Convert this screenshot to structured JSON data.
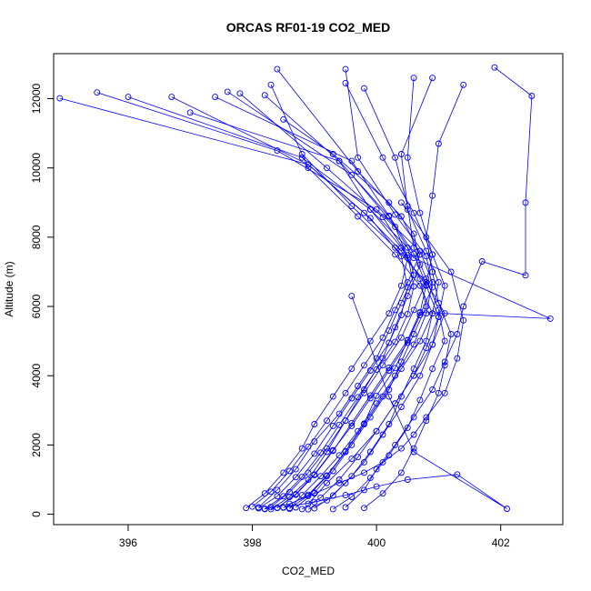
{
  "chart_data": {
    "type": "line",
    "title": "ORCAS RF01-19 CO2_MED",
    "xlabel": "CO2_MED",
    "ylabel": "Altitude (m)",
    "xlim": [
      394.8,
      403.0
    ],
    "ylim": [
      -300,
      13300
    ],
    "xticks": [
      396,
      398,
      400,
      402
    ],
    "yticks": [
      0,
      2000,
      4000,
      6000,
      8000,
      10000,
      12000
    ],
    "color": "#0000ff",
    "markers": "open-circle",
    "grid": false,
    "legend": "none",
    "series": [
      {
        "x": [
          398.3,
          398.6,
          398.9,
          399.2,
          399.5,
          399.8,
          400.1,
          400.3,
          400.5,
          400.7,
          400.6,
          400.2,
          399.3,
          398.5
        ],
        "y": [
          150,
          500,
          1000,
          1800,
          2700,
          3600,
          4500,
          5400,
          6300,
          7200,
          8100,
          9000,
          10400,
          11400
        ]
      },
      {
        "x": [
          397.9,
          398.2,
          398.5,
          398.8,
          399.0,
          399.3,
          399.6,
          399.9,
          400.2,
          400.4,
          400.5,
          400.3,
          399.6,
          397.6
        ],
        "y": [
          180,
          600,
          1200,
          1900,
          2600,
          3400,
          4200,
          5000,
          5800,
          6600,
          7400,
          8300,
          9800,
          12200
        ]
      },
      {
        "x": [
          398.1,
          398.4,
          398.7,
          399.0,
          399.4,
          399.7,
          400.0,
          400.2,
          400.4,
          400.6,
          400.5,
          399.9,
          398.8,
          396.0
        ],
        "y": [
          200,
          700,
          1300,
          2100,
          2900,
          3700,
          4500,
          5300,
          6100,
          6900,
          7700,
          8800,
          10300,
          12050
        ]
      },
      {
        "x": [
          398.6,
          398.8,
          399.1,
          399.4,
          399.7,
          400.0,
          400.3,
          400.6,
          400.8,
          400.9,
          400.7,
          400.0,
          398.4,
          395.5
        ],
        "y": [
          160,
          550,
          1100,
          1700,
          2400,
          3200,
          4000,
          4900,
          5800,
          6700,
          7600,
          8800,
          10500,
          12180
        ]
      },
      {
        "x": [
          398.9,
          399.2,
          399.5,
          399.8,
          400.1,
          400.4,
          400.7,
          400.9,
          401.0,
          400.8,
          400.4,
          399.8,
          398.9,
          394.9
        ],
        "y": [
          140,
          400,
          900,
          1500,
          2300,
          3100,
          4000,
          4900,
          5700,
          6600,
          7600,
          8700,
          10100,
          12010
        ]
      },
      {
        "x": [
          398.0,
          398.3,
          398.6,
          398.9,
          399.2,
          399.5,
          399.8,
          400.1,
          400.3,
          400.5,
          400.7,
          400.4,
          399.7,
          398.4
        ],
        "y": [
          220,
          650,
          1250,
          1950,
          2700,
          3500,
          4300,
          5100,
          5900,
          6700,
          7500,
          8600,
          9900,
          12850
        ]
      },
      {
        "x": [
          398.4,
          398.7,
          399.0,
          399.3,
          399.6,
          399.9,
          400.2,
          400.5,
          400.7,
          400.9,
          400.8,
          400.3,
          399.7,
          399.5
        ],
        "y": [
          180,
          580,
          1150,
          1850,
          2550,
          3350,
          4150,
          4950,
          5750,
          6550,
          7450,
          8650,
          10300,
          12850
        ]
      },
      {
        "x": [
          398.7,
          399.0,
          399.3,
          399.6,
          399.9,
          400.2,
          400.4,
          400.6,
          400.8,
          400.7,
          400.4,
          399.9,
          399.4,
          398.2
        ],
        "y": [
          200,
          620,
          1250,
          2000,
          2800,
          3600,
          4400,
          5200,
          6000,
          6800,
          7700,
          8800,
          10200,
          12100
        ]
      },
      {
        "x": [
          399.3,
          399.6,
          399.9,
          400.2,
          400.5,
          400.7,
          400.9,
          401.1,
          401.0,
          400.8,
          400.6,
          400.5,
          400.3,
          399.8
        ],
        "y": [
          150,
          500,
          1050,
          1700,
          2500,
          3300,
          4200,
          5000,
          5900,
          6800,
          7700,
          8900,
          10300,
          12300
        ]
      },
      {
        "x": [
          399.8,
          400.1,
          400.4,
          400.6,
          400.8,
          401.0,
          401.1,
          401.2,
          401.0,
          400.9,
          400.8,
          400.9,
          401.0,
          401.4
        ],
        "y": [
          180,
          600,
          1200,
          1900,
          2700,
          3500,
          4300,
          5200,
          6100,
          7000,
          8000,
          9200,
          10700,
          12400
        ]
      },
      {
        "x": [
          398.2,
          398.5,
          398.8,
          399.1,
          399.4,
          399.7,
          400.0,
          400.3,
          400.5,
          400.6,
          400.5,
          400.1,
          399.2,
          397.8
        ],
        "y": [
          160,
          520,
          1080,
          1780,
          2580,
          3380,
          4180,
          4980,
          5780,
          6580,
          7480,
          8580,
          10000,
          12150
        ]
      },
      {
        "x": [
          398.5,
          398.9,
          399.2,
          399.5,
          399.8,
          400.0,
          400.3,
          400.5,
          400.7,
          400.8,
          400.6,
          400.2,
          399.6,
          397.4
        ],
        "y": [
          190,
          560,
          1120,
          1820,
          2620,
          3420,
          4220,
          5020,
          5820,
          6620,
          7520,
          8620,
          10200,
          12050
        ]
      },
      {
        "x": [
          399.0,
          399.3,
          399.6,
          399.9,
          400.2,
          400.4,
          400.6,
          400.8,
          400.9,
          400.7,
          400.3,
          399.7,
          398.9,
          398.3
        ],
        "y": [
          170,
          540,
          1100,
          1800,
          2600,
          3400,
          4200,
          5000,
          5800,
          6600,
          7500,
          8600,
          10000,
          12400
        ]
      },
      {
        "x": [
          398.3,
          398.6,
          398.9,
          399.2,
          399.5,
          399.8,
          400.1,
          400.4,
          400.6,
          400.8,
          400.9,
          400.6,
          400.1,
          399.5
        ],
        "y": [
          210,
          640,
          1200,
          1900,
          2700,
          3500,
          4300,
          5100,
          5900,
          6700,
          7500,
          8700,
          10300,
          12450
        ]
      },
      {
        "x": [
          398.8,
          399.1,
          399.4,
          399.7,
          400.0,
          400.3,
          400.6,
          400.8,
          401.0,
          401.1,
          400.9,
          400.7,
          400.5,
          400.6
        ],
        "y": [
          150,
          480,
          1000,
          1650,
          2400,
          3200,
          4000,
          4800,
          5700,
          6600,
          7500,
          8700,
          10300,
          12600
        ]
      },
      {
        "x": [
          398.6,
          398.9,
          399.2,
          399.5,
          399.8,
          400.1,
          400.4,
          400.7,
          400.9,
          401.0,
          400.8,
          400.5,
          400.4,
          400.9
        ],
        "y": [
          180,
          530,
          1100,
          1800,
          2600,
          3400,
          4200,
          5000,
          5800,
          6700,
          7600,
          8800,
          10400,
          12600
        ]
      },
      {
        "x": [
          399.5,
          399.8,
          400.0,
          400.3,
          400.6,
          400.9,
          401.1,
          401.3,
          401.4,
          401.7,
          402.4,
          402.4,
          402.5,
          401.9
        ],
        "y": [
          200,
          700,
          1300,
          2000,
          2800,
          3600,
          4400,
          5200,
          6000,
          7300,
          6900,
          9000,
          12080,
          12900
        ]
      },
      {
        "x": [
          398.1,
          398.4,
          398.7,
          399.0,
          399.3,
          399.6,
          399.9,
          400.2,
          400.4,
          400.5,
          400.4,
          399.9,
          398.9,
          396.7
        ],
        "y": [
          170,
          520,
          1070,
          1750,
          2550,
          3350,
          4150,
          4950,
          5750,
          6550,
          7450,
          8550,
          10100,
          12050
        ]
      },
      {
        "x": [
          398.4,
          398.7,
          399.0,
          399.3,
          399.6,
          399.9,
          400.2,
          400.5,
          400.7,
          402.8,
          400.6,
          400.2,
          399.4,
          397.0
        ],
        "y": [
          190,
          560,
          1130,
          1830,
          2630,
          3430,
          4230,
          5030,
          5830,
          5650,
          7400,
          8600,
          10200,
          11600
        ]
      },
      {
        "x": [
          398.2,
          398.6,
          399.0,
          399.4,
          399.8,
          400.1,
          400.4,
          400.6,
          400.8,
          401.1,
          401.3,
          401.4,
          401.2,
          400.4
        ],
        "y": [
          150,
          300,
          600,
          900,
          1200,
          1500,
          1900,
          2300,
          2800,
          3500,
          4500,
          5600,
          7000,
          9000
        ]
      },
      {
        "x": [
          398.5,
          399.0,
          399.5,
          400.0,
          400.5,
          401.3,
          402.1,
          400.6,
          400.2,
          399.6
        ],
        "y": [
          200,
          350,
          550,
          800,
          1000,
          1150,
          160,
          1800,
          3400,
          6300
        ]
      },
      {
        "x": [
          398.9,
          399.2,
          399.6,
          400.0,
          400.3,
          400.6,
          400.9,
          401.1,
          400.8,
          400.3,
          399.6,
          398.8
        ],
        "y": [
          300,
          900,
          1600,
          2400,
          3200,
          4000,
          4900,
          5800,
          6700,
          7700,
          8900,
          10400
        ]
      }
    ]
  }
}
